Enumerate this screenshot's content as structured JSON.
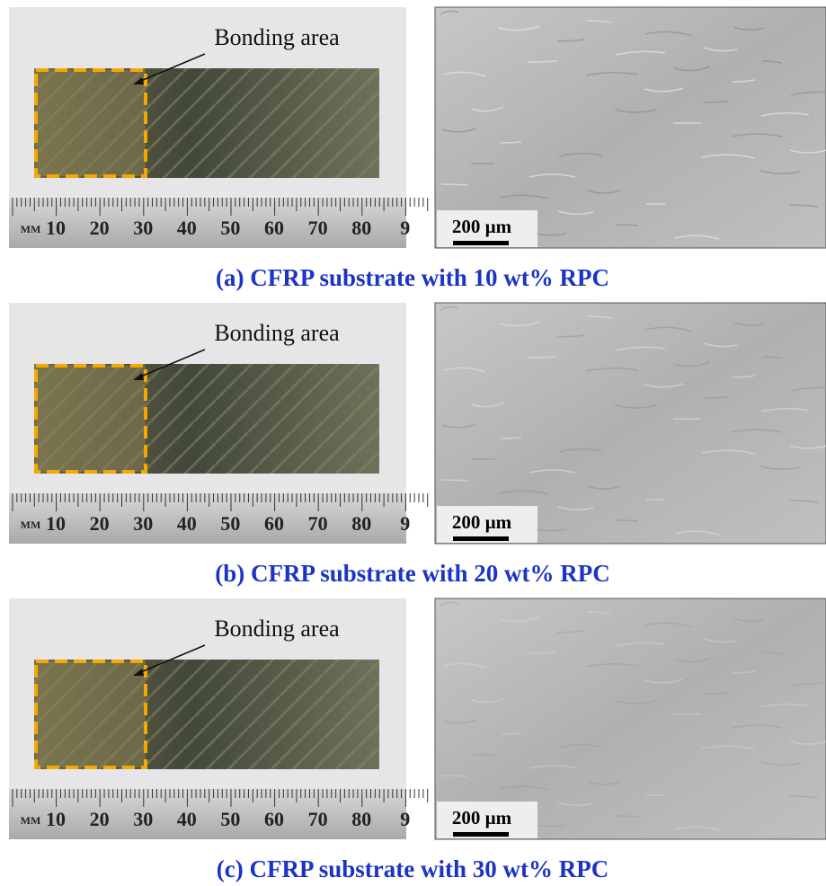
{
  "panels": [
    {
      "caption": "(a) CFRP substrate with 10 wt% RPC",
      "bonding_label": "Bonding area",
      "scale_bar": "200 µm",
      "ruler_labels": [
        "MM",
        "10",
        "20",
        "30",
        "40",
        "50",
        "60",
        "70",
        "80",
        "9"
      ]
    },
    {
      "caption": "(b) CFRP substrate with 20 wt% RPC",
      "bonding_label": "Bonding area",
      "scale_bar": "200 µm",
      "ruler_labels": [
        "MM",
        "10",
        "20",
        "30",
        "40",
        "50",
        "60",
        "70",
        "80",
        "9"
      ]
    },
    {
      "caption": "(c) CFRP substrate with 30 wt% RPC",
      "bonding_label": "Bonding area",
      "scale_bar": "200 µm",
      "ruler_labels": [
        "MM",
        "10",
        "20",
        "30",
        "40",
        "50",
        "60",
        "70",
        "80",
        "9"
      ]
    }
  ]
}
